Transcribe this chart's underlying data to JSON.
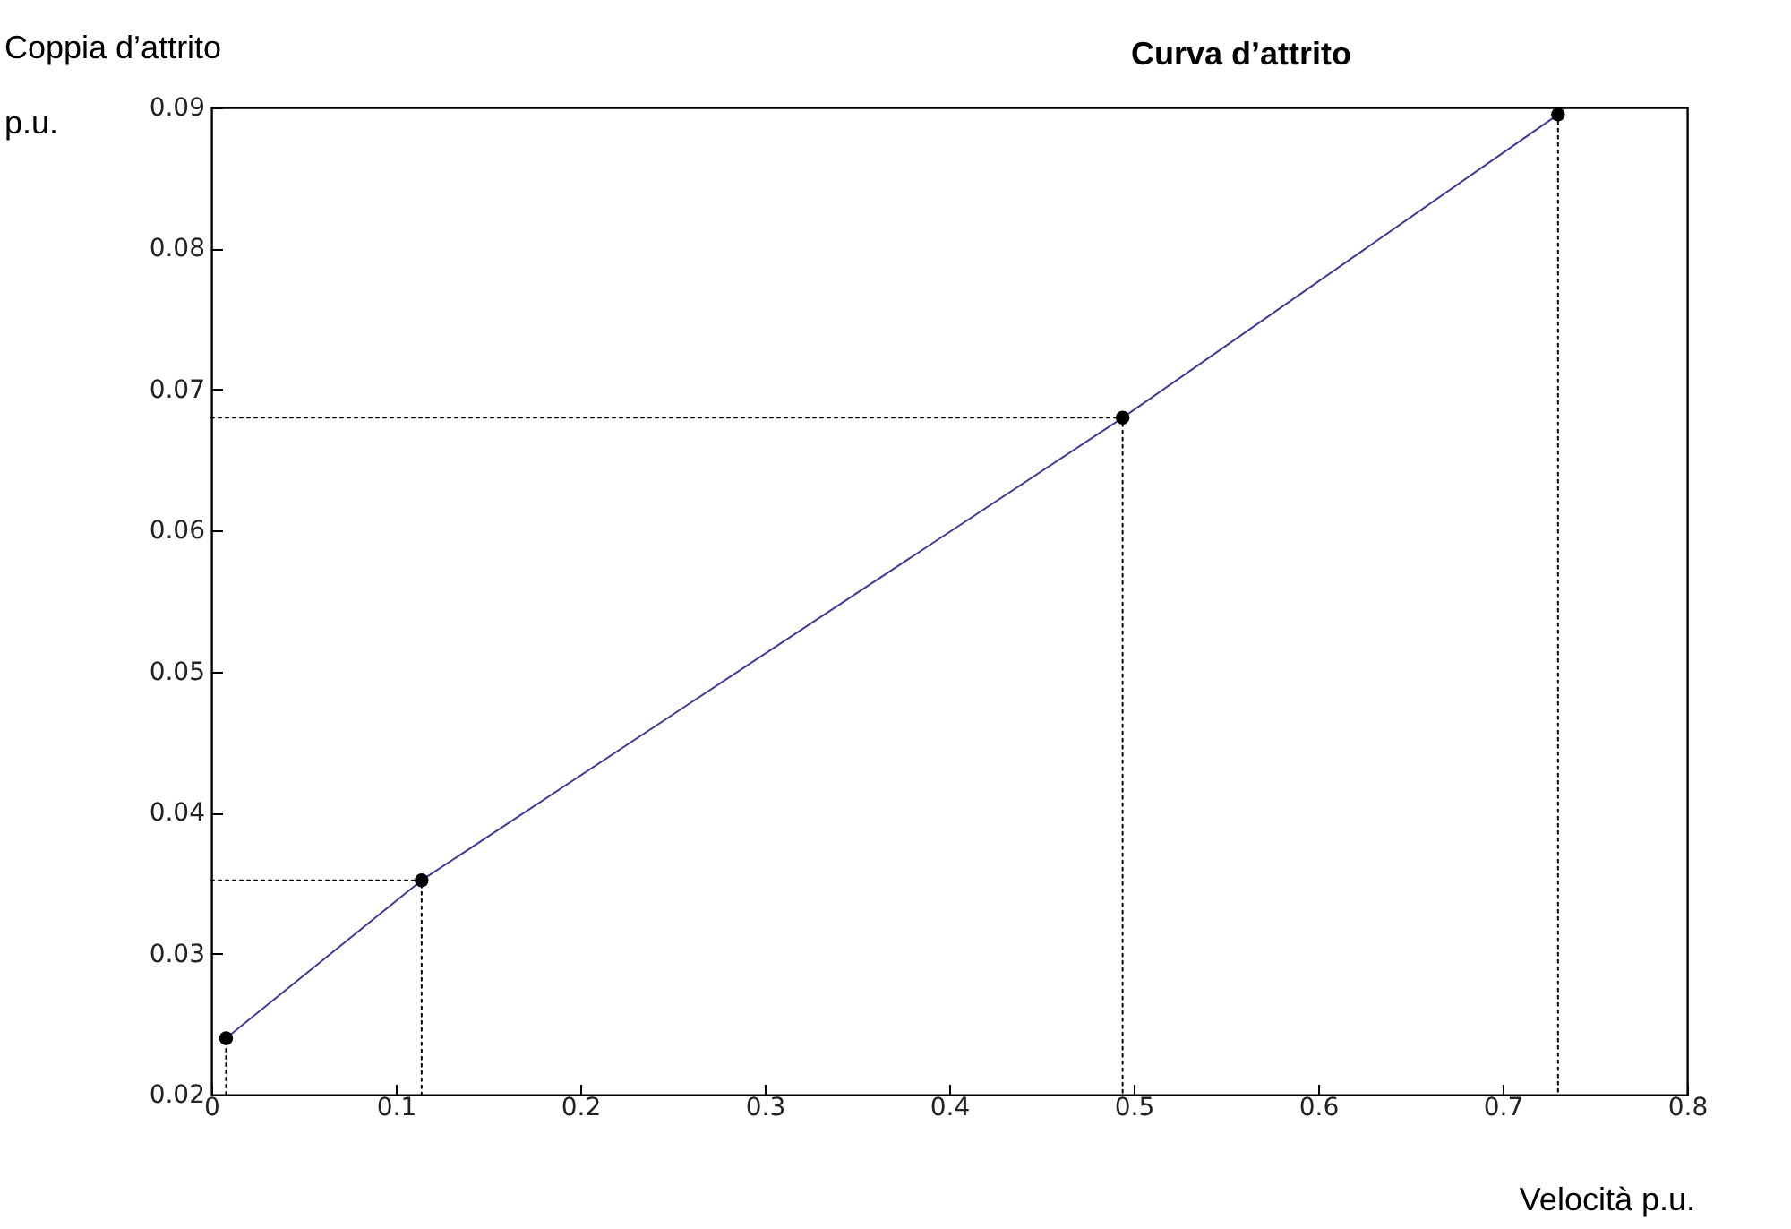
{
  "chart_data": {
    "type": "line",
    "title": "Curva d’attrito",
    "xlabel": "Velocità    p.u.",
    "ylabel": "Coppia d’attrito\np.u.",
    "xlim": [
      0,
      0.8
    ],
    "xticks": [
      0,
      0.1,
      0.2,
      0.3,
      0.4,
      0.5,
      0.6,
      0.7,
      0.8
    ],
    "ylim": [
      0.02,
      0.09
    ],
    "yticks": [
      0.02,
      0.03,
      0.04,
      0.05,
      0.06,
      0.07,
      0.08,
      0.09
    ],
    "series": [
      {
        "type": "line",
        "color": "#3c3c96",
        "line_style": "solid",
        "x": [
          0.008,
          0.114,
          0.494,
          0.73
        ],
        "values": [
          0.024,
          0.0352,
          0.068,
          0.0895
        ]
      },
      {
        "type": "scatter",
        "color": "#000000",
        "marker": "circle",
        "x": [
          0.008,
          0.114,
          0.494,
          0.73
        ],
        "values": [
          0.024,
          0.0352,
          0.068,
          0.0895
        ]
      },
      {
        "type": "line",
        "color": "#000000",
        "line_style": "dotted",
        "x": [
          0.008,
          0.008
        ],
        "values": [
          0.02,
          0.024
        ]
      },
      {
        "type": "line",
        "color": "#000000",
        "line_style": "dotted",
        "x": [
          0,
          0.114,
          0.114
        ],
        "values": [
          0.0352,
          0.0352,
          0.02
        ]
      },
      {
        "type": "line",
        "color": "#000000",
        "line_style": "dotted",
        "x": [
          0,
          0.494,
          0.494
        ],
        "values": [
          0.068,
          0.068,
          0.02
        ]
      },
      {
        "type": "line",
        "color": "#000000",
        "line_style": "dotted",
        "x": [
          0.73,
          0.73
        ],
        "values": [
          0.0895,
          0.02
        ]
      }
    ]
  }
}
